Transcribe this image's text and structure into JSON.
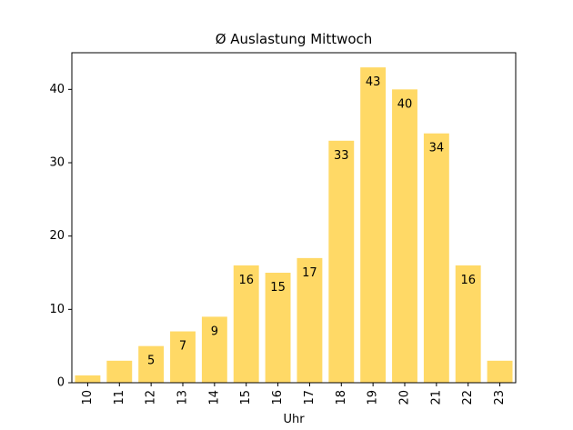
{
  "chart_data": {
    "type": "bar",
    "title": "Ø Auslastung Mittwoch",
    "xlabel": "Uhr",
    "ylabel": "",
    "categories": [
      "10",
      "11",
      "12",
      "13",
      "14",
      "15",
      "16",
      "17",
      "18",
      "19",
      "20",
      "21",
      "22",
      "23"
    ],
    "values": [
      1,
      3,
      5,
      7,
      9,
      16,
      15,
      17,
      33,
      43,
      40,
      34,
      16,
      3
    ],
    "data_labels": [
      "",
      "",
      "5",
      "7",
      "9",
      "16",
      "15",
      "17",
      "33",
      "43",
      "40",
      "34",
      "16",
      ""
    ],
    "ylim": [
      0,
      45
    ],
    "yticks": [
      0,
      10,
      20,
      30,
      40
    ],
    "grid": false,
    "bar_color": "#FFD966"
  }
}
